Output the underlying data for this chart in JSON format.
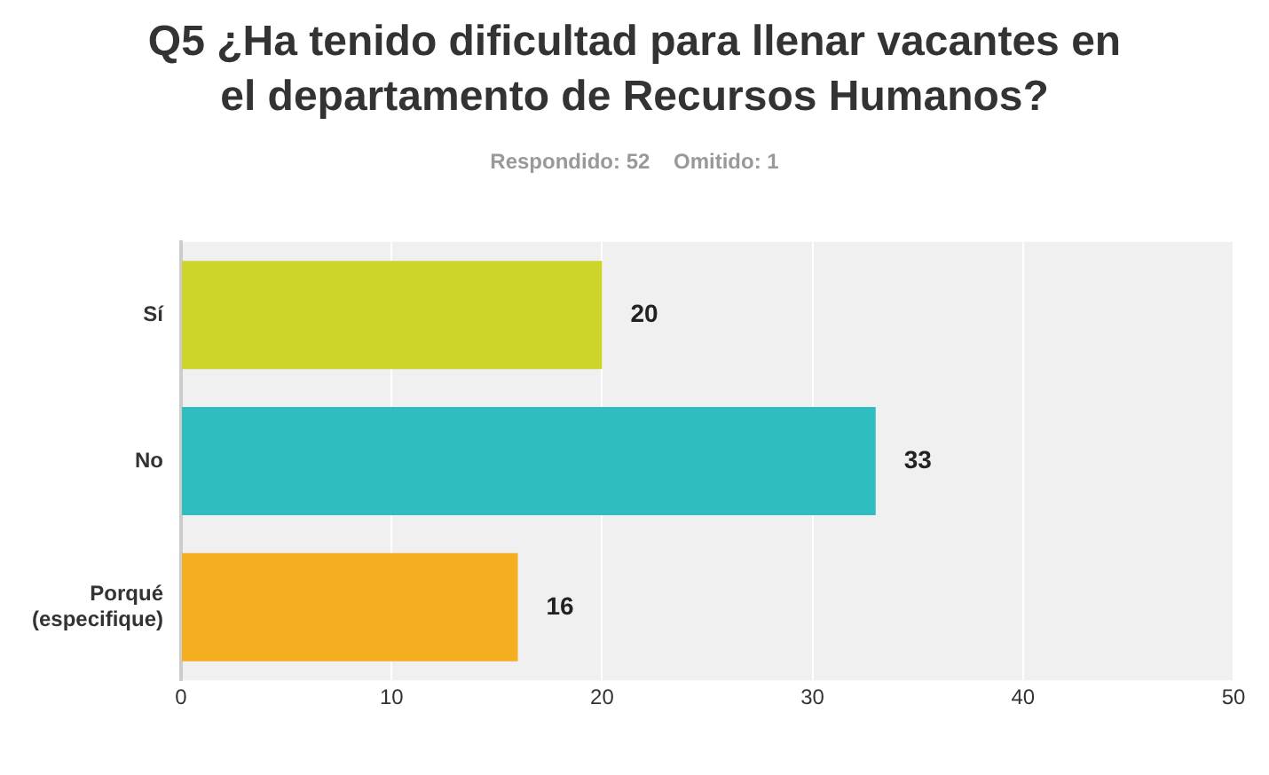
{
  "chart_data": {
    "type": "bar",
    "orientation": "horizontal",
    "title": "Q5 ¿Ha tenido dificultad para llenar vacantes en el departamento de Recursos Humanos?",
    "subtitle": "Respondido: 52    Omitido: 1",
    "categories": [
      "Sí",
      "No",
      "Porqué (especifique)"
    ],
    "values": [
      20,
      33,
      16
    ],
    "colors": [
      "#cdd52a",
      "#2fbdbf",
      "#f5ae1f"
    ],
    "xlim": [
      0,
      50
    ],
    "xticks": [
      0,
      10,
      20,
      30,
      40,
      50
    ],
    "grid": "x",
    "data_labels": true
  }
}
